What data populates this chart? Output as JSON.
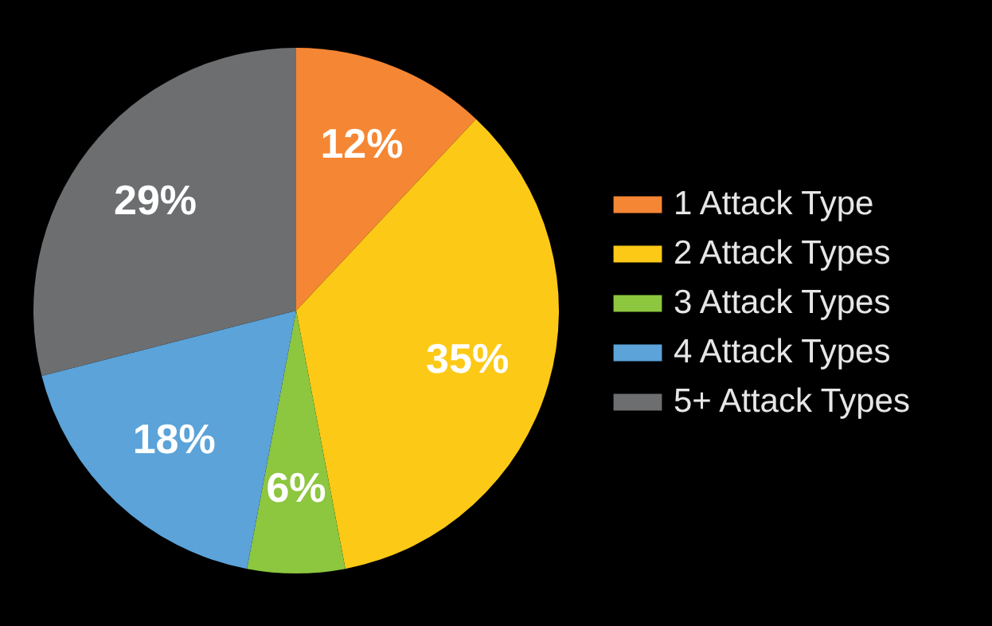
{
  "chart_data": {
    "type": "pie",
    "categories": [
      "1 Attack Type",
      "2 Attack Types",
      "3 Attack Types",
      "4 Attack Types",
      "5+ Attack Types"
    ],
    "values": [
      12,
      35,
      6,
      18,
      29
    ],
    "colors": [
      "#f58634",
      "#fcc917",
      "#8dc63f",
      "#5ba3d9",
      "#6d6e70"
    ],
    "value_labels": [
      "12%",
      "35%",
      "6%",
      "18%",
      "29%"
    ],
    "legend": "right"
  }
}
